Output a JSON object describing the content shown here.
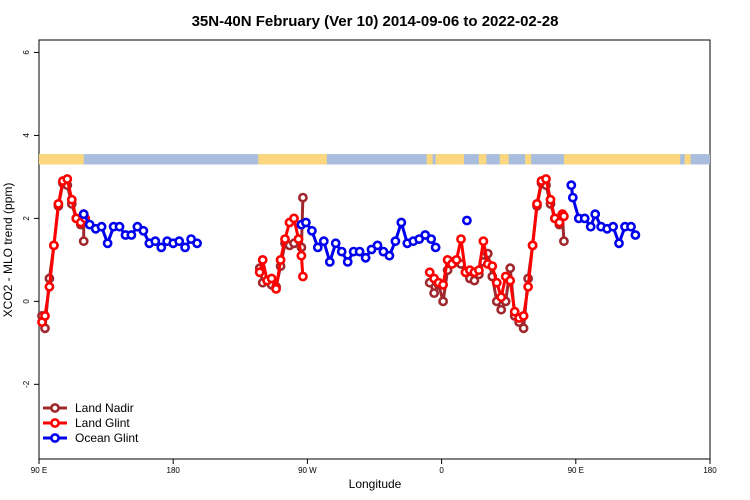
{
  "chart_data": {
    "type": "line",
    "title": "35N-40N February (Ver 10)   2014-09-06 to 2022-02-28",
    "xlabel": "Longitude",
    "ylabel": "XCO2 - MLO trend (ppm)",
    "xlim": [
      90,
      540
    ],
    "ylim": [
      -3.8,
      6.3
    ],
    "x_ticks": [
      {
        "value": 90,
        "label": "90 E"
      },
      {
        "value": 180,
        "label": "180"
      },
      {
        "value": 270,
        "label": "90 W"
      },
      {
        "value": 360,
        "label": "0"
      },
      {
        "value": 450,
        "label": "90 E"
      },
      {
        "value": 540,
        "label": "180"
      }
    ],
    "y_ticks": [
      {
        "value": -2,
        "label": "-2"
      },
      {
        "value": 0,
        "label": "0"
      },
      {
        "value": 2,
        "label": "2"
      },
      {
        "value": 4,
        "label": "4"
      },
      {
        "value": 6,
        "label": "6"
      }
    ],
    "land_ocean_bar": {
      "y_range": [
        3.3,
        3.55
      ],
      "ocean_color": "#a8bedc",
      "land_color": "#fcd77f",
      "land_segments": [
        [
          90,
          120
        ],
        [
          237,
          238
        ],
        [
          238,
          283
        ],
        [
          350,
          354
        ],
        [
          356,
          375
        ],
        [
          385,
          390
        ],
        [
          399,
          405
        ],
        [
          416,
          420
        ],
        [
          442,
          520
        ],
        [
          523,
          527
        ]
      ]
    },
    "legend": {
      "position": "bottom-left",
      "entries": [
        {
          "label": "Land Nadir",
          "color": "#a0282d"
        },
        {
          "label": "Land Glint",
          "color": "#ff0000"
        },
        {
          "label": "Ocean Glint",
          "color": "#0000ee"
        }
      ]
    },
    "series": [
      {
        "name": "Land Nadir",
        "color": "#a0282d",
        "segments": [
          [
            [
              92,
              -0.35
            ],
            [
              94,
              -0.65
            ],
            [
              97,
              0.55
            ],
            [
              100,
              1.35
            ],
            [
              103,
              2.3
            ],
            [
              106,
              2.85
            ],
            [
              109,
              2.8
            ],
            [
              112,
              2.35
            ],
            [
              115,
              2.0
            ],
            [
              118,
              1.85
            ],
            [
              120,
              2.1
            ],
            [
              120,
              1.45
            ]
          ],
          [
            [
              238,
              0.8
            ],
            [
              240,
              0.45
            ],
            [
              243,
              0.5
            ],
            [
              246,
              0.4
            ],
            [
              249,
              0.35
            ],
            [
              252,
              0.85
            ],
            [
              255,
              1.4
            ],
            [
              258,
              1.35
            ],
            [
              261,
              1.4
            ],
            [
              264,
              1.5
            ],
            [
              266,
              1.3
            ],
            [
              267,
              2.5
            ]
          ],
          [
            [
              352,
              0.45
            ],
            [
              355,
              0.2
            ],
            [
              358,
              0.4
            ],
            [
              361,
              0.0
            ],
            [
              364,
              0.75
            ],
            [
              367,
              0.95
            ],
            [
              370,
              0.95
            ],
            [
              373,
              0.9
            ],
            [
              376,
              0.7
            ],
            [
              379,
              0.55
            ],
            [
              382,
              0.5
            ],
            [
              385,
              0.65
            ],
            [
              388,
              0.95
            ],
            [
              391,
              1.15
            ],
            [
              394,
              0.6
            ],
            [
              397,
              0.0
            ],
            [
              400,
              -0.2
            ],
            [
              403,
              0.0
            ],
            [
              406,
              0.8
            ],
            [
              409,
              -0.35
            ],
            [
              412,
              -0.5
            ],
            [
              415,
              -0.65
            ],
            [
              418,
              0.55
            ],
            [
              421,
              1.35
            ],
            [
              424,
              2.3
            ],
            [
              427,
              2.85
            ],
            [
              430,
              2.8
            ],
            [
              433,
              2.35
            ],
            [
              436,
              2.0
            ],
            [
              439,
              1.85
            ],
            [
              441,
              2.1
            ],
            [
              442,
              1.45
            ]
          ]
        ]
      },
      {
        "name": "Land Glint",
        "color": "#ff0000",
        "segments": [
          [
            [
              92,
              -0.5
            ],
            [
              94,
              -0.35
            ],
            [
              97,
              0.35
            ],
            [
              100,
              1.35
            ],
            [
              103,
              2.35
            ],
            [
              106,
              2.9
            ],
            [
              109,
              2.95
            ],
            [
              112,
              2.45
            ],
            [
              115,
              2.0
            ],
            [
              118,
              1.9
            ],
            [
              120,
              2.1
            ],
            [
              121,
              2.0
            ]
          ],
          [
            [
              238,
              0.7
            ],
            [
              240,
              1.0
            ],
            [
              243,
              0.5
            ],
            [
              246,
              0.55
            ],
            [
              249,
              0.3
            ],
            [
              252,
              1.0
            ],
            [
              255,
              1.5
            ],
            [
              258,
              1.9
            ],
            [
              261,
              2.0
            ],
            [
              264,
              1.5
            ],
            [
              266,
              1.1
            ],
            [
              267,
              0.6
            ]
          ],
          [
            [
              352,
              0.7
            ],
            [
              355,
              0.55
            ],
            [
              358,
              0.45
            ],
            [
              361,
              0.4
            ],
            [
              364,
              1.0
            ],
            [
              367,
              0.9
            ],
            [
              370,
              1.0
            ],
            [
              373,
              1.5
            ],
            [
              376,
              0.7
            ],
            [
              379,
              0.75
            ],
            [
              382,
              0.7
            ],
            [
              385,
              0.75
            ],
            [
              388,
              1.45
            ],
            [
              391,
              0.9
            ],
            [
              394,
              0.85
            ],
            [
              397,
              0.45
            ],
            [
              400,
              0.1
            ],
            [
              403,
              0.6
            ],
            [
              406,
              0.5
            ],
            [
              409,
              -0.25
            ],
            [
              412,
              -0.4
            ],
            [
              415,
              -0.35
            ],
            [
              418,
              0.35
            ],
            [
              421,
              1.35
            ],
            [
              424,
              2.35
            ],
            [
              427,
              2.9
            ],
            [
              430,
              2.95
            ],
            [
              433,
              2.45
            ],
            [
              436,
              2.0
            ],
            [
              439,
              1.9
            ],
            [
              441,
              2.1
            ],
            [
              442,
              2.05
            ]
          ]
        ]
      },
      {
        "name": "Ocean Glint",
        "color": "#0000ee",
        "segments": [
          [
            [
              120,
              2.1
            ],
            [
              124,
              1.85
            ],
            [
              128,
              1.75
            ],
            [
              132,
              1.8
            ],
            [
              136,
              1.4
            ],
            [
              140,
              1.8
            ],
            [
              144,
              1.8
            ],
            [
              148,
              1.6
            ],
            [
              152,
              1.6
            ],
            [
              156,
              1.8
            ],
            [
              160,
              1.7
            ],
            [
              164,
              1.4
            ],
            [
              168,
              1.45
            ],
            [
              172,
              1.3
            ],
            [
              176,
              1.45
            ],
            [
              180,
              1.4
            ],
            [
              184,
              1.45
            ],
            [
              188,
              1.3
            ],
            [
              192,
              1.5
            ],
            [
              196,
              1.4
            ]
          ],
          [
            [
              266,
              1.85
            ],
            [
              269,
              1.9
            ],
            [
              273,
              1.7
            ],
            [
              277,
              1.3
            ],
            [
              281,
              1.45
            ],
            [
              285,
              0.95
            ],
            [
              289,
              1.4
            ],
            [
              293,
              1.2
            ],
            [
              297,
              0.95
            ],
            [
              301,
              1.2
            ],
            [
              305,
              1.2
            ],
            [
              309,
              1.05
            ],
            [
              313,
              1.25
            ],
            [
              317,
              1.35
            ],
            [
              321,
              1.2
            ],
            [
              325,
              1.1
            ],
            [
              329,
              1.45
            ],
            [
              333,
              1.9
            ],
            [
              337,
              1.4
            ],
            [
              341,
              1.45
            ],
            [
              345,
              1.5
            ],
            [
              349,
              1.6
            ],
            [
              353,
              1.5
            ],
            [
              356,
              1.3
            ]
          ],
          [
            [
              377,
              1.95
            ]
          ],
          [
            [
              447,
              2.8
            ],
            [
              448,
              2.5
            ],
            [
              452,
              2.0
            ],
            [
              456,
              2.0
            ],
            [
              460,
              1.8
            ],
            [
              463,
              2.1
            ],
            [
              467,
              1.8
            ],
            [
              471,
              1.75
            ],
            [
              475,
              1.8
            ],
            [
              479,
              1.4
            ],
            [
              483,
              1.8
            ],
            [
              487,
              1.8
            ],
            [
              490,
              1.6
            ]
          ]
        ]
      }
    ]
  }
}
